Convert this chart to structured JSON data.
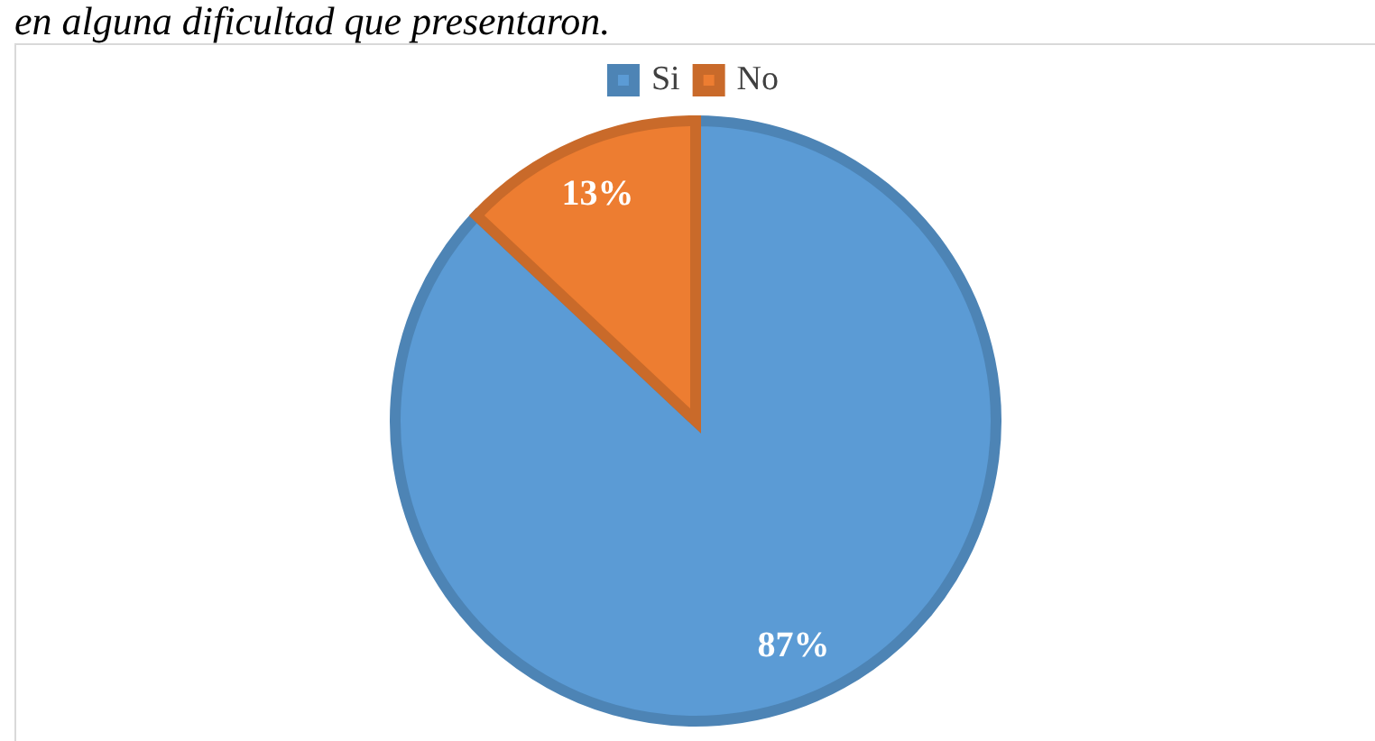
{
  "chart_data": {
    "type": "pie",
    "title": "en alguna dificultad que presentaron.",
    "categories": [
      "Si",
      "No"
    ],
    "values": [
      87,
      13
    ],
    "colors": [
      "#5b9bd5",
      "#ed7d31"
    ],
    "value_labels": [
      "87%",
      "13%"
    ],
    "legend": "top"
  }
}
